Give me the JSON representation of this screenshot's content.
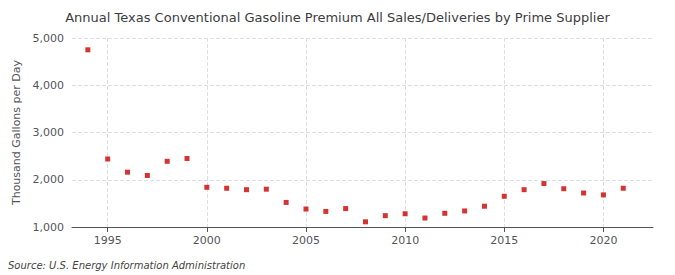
{
  "chart_data": {
    "type": "scatter",
    "title": "Annual Texas Conventional Gasoline Premium All Sales/Deliveries by Prime Supplier",
    "ylabel": "Thousand Gallons per Day",
    "annotation": "Source: U.S. Energy Information Administration",
    "x": [
      1994,
      1995,
      1996,
      1997,
      1998,
      1999,
      2000,
      2001,
      2002,
      2003,
      2004,
      2005,
      2006,
      2007,
      2008,
      2009,
      2010,
      2011,
      2012,
      2013,
      2014,
      2015,
      2016,
      2017,
      2018,
      2019,
      2020,
      2021
    ],
    "values": [
      4750,
      2440,
      2160,
      2090,
      2390,
      2450,
      1840,
      1820,
      1790,
      1800,
      1520,
      1380,
      1330,
      1390,
      1110,
      1240,
      1280,
      1190,
      1290,
      1340,
      1440,
      1650,
      1790,
      1920,
      1810,
      1720,
      1680,
      1820
    ],
    "color": "#cc0000",
    "marker": "square",
    "xlim": [
      1993.2,
      2022.5
    ],
    "xticks": [
      1995,
      2000,
      2005,
      2010,
      2015,
      2020
    ],
    "ylim": [
      1000,
      5000
    ],
    "yticks": [
      {
        "value": 1000,
        "label": "1,000"
      },
      {
        "value": 2000,
        "label": "2,000"
      },
      {
        "value": 3000,
        "label": "3,000"
      },
      {
        "value": 4000,
        "label": "4,000"
      },
      {
        "value": 5000,
        "label": "5,000"
      }
    ],
    "grid": true
  }
}
